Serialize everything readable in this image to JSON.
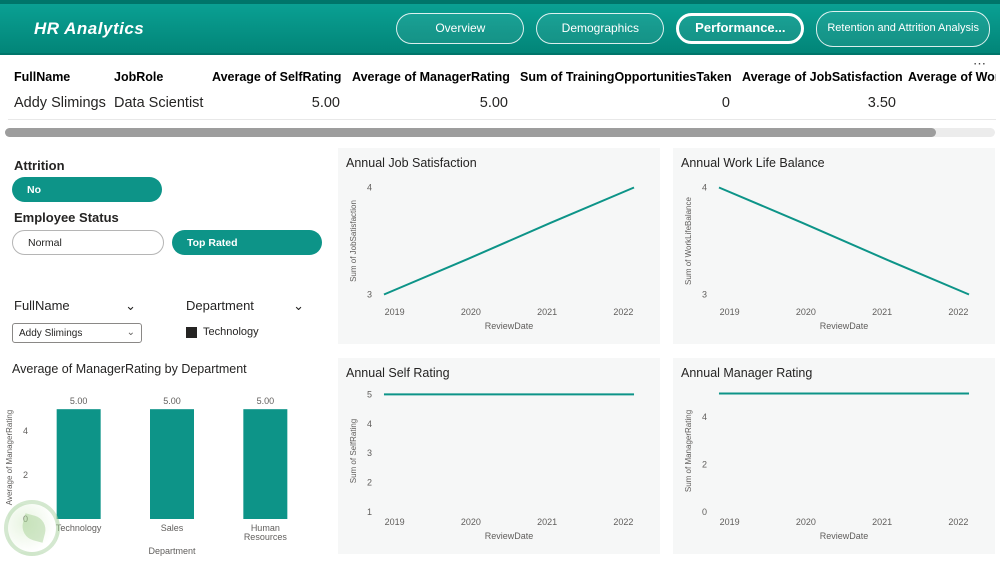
{
  "colors": {
    "accent": "#0d9488",
    "header_bg_top": "#0aa093",
    "header_bg_bottom": "#028578",
    "header_border": "#00756a",
    "panel_bg": "#f6f7f7",
    "tick_text": "#605e5c",
    "checkbox": "#252423",
    "scrollbar_thumb": "#9d9d9d"
  },
  "header": {
    "title": "HR Analytics",
    "nav": [
      {
        "label": "Overview"
      },
      {
        "label": "Demographics"
      },
      {
        "label": "Performance...",
        "active": true
      },
      {
        "label": "Retention and Attrition Analysis"
      }
    ]
  },
  "table": {
    "more_icon": "⋯",
    "columns": [
      {
        "label": "FullName"
      },
      {
        "label": "JobRole"
      },
      {
        "label": "Average of SelfRating"
      },
      {
        "label": "Average of ManagerRating"
      },
      {
        "label": "Sum of TrainingOpportunitiesTaken"
      },
      {
        "label": "Average of JobSatisfaction"
      },
      {
        "label": "Average of Wor"
      }
    ],
    "rows": [
      [
        "Addy Slimings",
        "Data Scientist",
        "5.00",
        "5.00",
        "0",
        "3.50",
        ""
      ]
    ]
  },
  "filters": {
    "attrition": {
      "label": "Attrition",
      "value": "No"
    },
    "employee_status": {
      "label": "Employee Status",
      "option_normal": "Normal",
      "option_top_rated": "Top Rated"
    },
    "fullname": {
      "label": "FullName",
      "value": "Addy Slimings",
      "chevron": "⌄"
    },
    "department": {
      "label": "Department",
      "value": "Technology",
      "chevron": "⌄"
    }
  },
  "chart_data": {
    "manager_by_dept": {
      "type": "bar",
      "title": "Average of ManagerRating by Department",
      "categories": [
        "Technology",
        "Sales",
        "Human Resources"
      ],
      "values": [
        5,
        5,
        5
      ],
      "data_labels": [
        "5.00",
        "5.00",
        "5.00"
      ],
      "xlabel": "Department",
      "ylabel": "Average of ManagerRating",
      "yticks": [
        0,
        2,
        4
      ],
      "ylim": [
        0,
        5.6
      ]
    },
    "job_satisfaction": {
      "type": "line",
      "title": "Annual Job Satisfaction",
      "x": [
        "2019",
        "2020",
        "2021",
        "2022"
      ],
      "values": [
        3,
        3.33,
        3.67,
        4
      ],
      "xlabel": "ReviewDate",
      "ylabel": "Sum of JobSatisfaction",
      "yticks": [
        3,
        4
      ],
      "ylim": [
        2.93,
        4.07
      ]
    },
    "work_life_balance": {
      "type": "line",
      "title": "Annual Work Life Balance",
      "x": [
        "2019",
        "2020",
        "2021",
        "2022"
      ],
      "values": [
        4,
        3.67,
        3.33,
        3
      ],
      "xlabel": "ReviewDate",
      "ylabel": "Sum of WorkLifeBalance",
      "yticks": [
        3,
        4
      ],
      "ylim": [
        2.93,
        4.07
      ]
    },
    "self_rating": {
      "type": "line",
      "title": "Annual Self Rating",
      "x": [
        "2019",
        "2020",
        "2021",
        "2022"
      ],
      "values": [
        5,
        5,
        5,
        5
      ],
      "xlabel": "ReviewDate",
      "ylabel": "Sum of SelfRating",
      "yticks": [
        1,
        2,
        3,
        4,
        5
      ],
      "ylim": [
        1,
        5.15
      ]
    },
    "manager_rating": {
      "type": "line",
      "title": "Annual Manager Rating",
      "x": [
        "2019",
        "2020",
        "2021",
        "2022"
      ],
      "values": [
        5,
        5,
        5,
        5
      ],
      "xlabel": "ReviewDate",
      "ylabel": "Sum of ManagerRating",
      "yticks": [
        0,
        2,
        4
      ],
      "ylim": [
        0,
        5.15
      ]
    }
  }
}
